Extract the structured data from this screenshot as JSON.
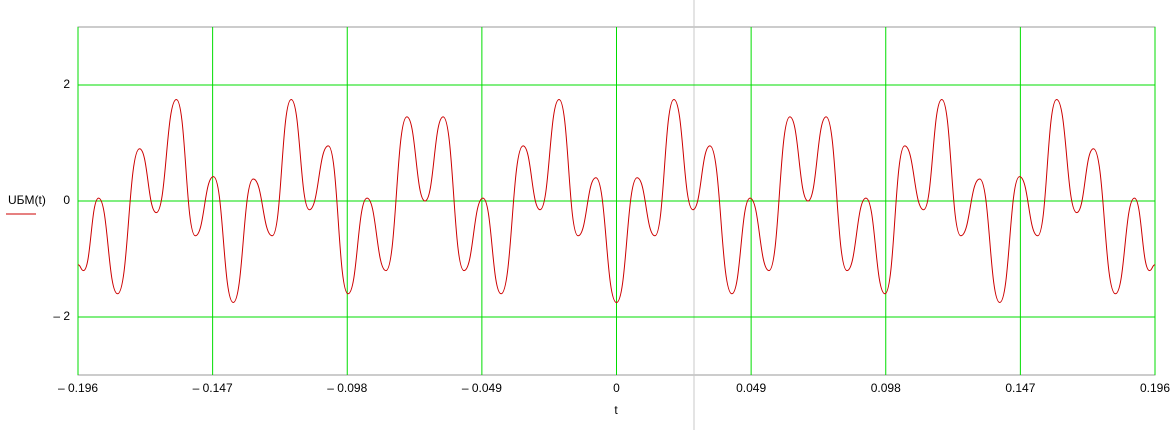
{
  "chart_data": {
    "type": "line",
    "x_label": "t",
    "x": [
      -0.196,
      -0.194,
      -0.1885,
      -0.1816,
      -0.1736,
      -0.1675,
      -0.1602,
      -0.1533,
      -0.1467,
      -0.1395,
      -0.1322,
      -0.1253,
      -0.1184,
      -0.1118,
      -0.1049,
      -0.0977,
      -0.0908,
      -0.0839,
      -0.0763,
      -0.0697,
      -0.0631,
      -0.0555,
      -0.0486,
      -0.042,
      -0.034,
      -0.0278,
      -0.0209,
      -0.014,
      -0.0075,
      0,
      0.0075,
      0.014,
      0.0209,
      0.0278,
      0.034,
      0.042,
      0.0486,
      0.0555,
      0.0631,
      0.0697,
      0.0763,
      0.0839,
      0.0908,
      0.0977,
      0.1049,
      0.1118,
      0.1184,
      0.1253,
      0.1322,
      0.1395,
      0.1467,
      0.1533,
      0.1602,
      0.1675,
      0.1736,
      0.1816,
      0.1885,
      0.194,
      0.196
    ],
    "series": [
      {
        "name": "UБM(t)",
        "color": "#cc0000",
        "values": [
          -1.1,
          -1.2,
          0.05,
          -1.6,
          0.9,
          -0.2,
          1.75,
          -0.6,
          0.42,
          -1.75,
          0.38,
          -0.6,
          1.75,
          -0.15,
          0.95,
          -1.6,
          0.05,
          -1.2,
          1.45,
          0,
          1.45,
          -1.2,
          0.05,
          -1.6,
          0.95,
          -0.15,
          1.75,
          -0.6,
          0.4,
          -1.75,
          0.4,
          -0.6,
          1.75,
          -0.15,
          0.95,
          -1.6,
          0.05,
          -1.2,
          1.45,
          0,
          1.45,
          -1.2,
          0.05,
          -1.6,
          0.95,
          -0.15,
          1.75,
          -0.6,
          0.38,
          -1.75,
          0.42,
          -0.6,
          1.75,
          -0.2,
          0.9,
          -1.6,
          0.05,
          -1.2,
          -1.1
        ]
      }
    ],
    "xlim": [
      -0.196,
      0.196
    ],
    "xticks": [
      {
        "value": -0.196,
        "label": "– 0.196"
      },
      {
        "value": -0.147,
        "label": "– 0.147"
      },
      {
        "value": -0.098,
        "label": "– 0.098"
      },
      {
        "value": -0.049,
        "label": "– 0.049"
      },
      0,
      0.049,
      0.098,
      0.147,
      0.196
    ],
    "ylim": [
      -3,
      3
    ],
    "yticks": [
      {
        "value": -2,
        "label": "– 2"
      },
      0,
      2
    ],
    "grid": true,
    "grid_color": "#00dd00"
  }
}
